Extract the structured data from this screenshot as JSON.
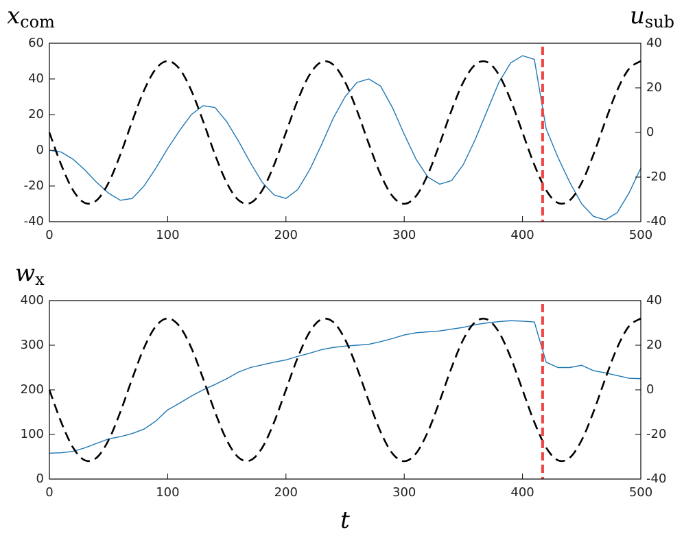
{
  "chart_data": [
    {
      "type": "line",
      "ylabel": {
        "base": "x",
        "sub": "com"
      },
      "y2label": {
        "base": "u",
        "sub": "sub"
      },
      "x": [
        0,
        10,
        20,
        30,
        40,
        50,
        60,
        70,
        80,
        90,
        100,
        110,
        120,
        130,
        140,
        150,
        160,
        170,
        180,
        190,
        200,
        210,
        220,
        230,
        240,
        250,
        260,
        270,
        280,
        290,
        300,
        310,
        320,
        330,
        340,
        350,
        360,
        370,
        380,
        390,
        400,
        410,
        420,
        430,
        440,
        450,
        460,
        470,
        480,
        490,
        500
      ],
      "series": [
        {
          "color": "#1f77b4",
          "values": [
            0,
            -1,
            -5,
            -11,
            -18,
            -24,
            -28,
            -27,
            -20,
            -10,
            1,
            11,
            20,
            25,
            24,
            16,
            5,
            -7,
            -18,
            -25,
            -27,
            -22,
            -11,
            3,
            18,
            30,
            38,
            40,
            36,
            24,
            9,
            -5,
            -15,
            -19,
            -17,
            -8,
            6,
            22,
            38,
            49,
            53,
            51,
            12,
            -4,
            -18,
            -30,
            -37,
            -39,
            -35,
            -24,
            -10
          ]
        },
        {
          "color": "#000000",
          "dashed": true,
          "axis": "y2",
          "values": [
            0,
            -14.5,
            -25.9,
            -31.6,
            -30.4,
            -22.6,
            -9.9,
            5,
            18.8,
            28.5,
            32,
            28.5,
            18.8,
            5,
            -9.9,
            -22.6,
            -30.4,
            -31.6,
            -25.9,
            -14.5,
            0,
            14.5,
            25.9,
            31.6,
            30.4,
            22.6,
            9.9,
            -5,
            -18.8,
            -28.5,
            -32,
            -28.5,
            -18.8,
            -5,
            9.9,
            22.6,
            30.4,
            31.6,
            25.9,
            14.5,
            0,
            -14.5,
            -25.9,
            -31.6,
            -30.4,
            -22.6,
            -9.9,
            5,
            18.8,
            28.5,
            32
          ]
        }
      ],
      "vline": {
        "x": 417,
        "color": "#ee4444"
      },
      "xlim": [
        0,
        500
      ],
      "xticks": [
        0,
        100,
        200,
        300,
        400,
        500
      ],
      "ylim": [
        -40,
        60
      ],
      "yticks": [
        -40,
        -20,
        0,
        20,
        40,
        60
      ],
      "y2lim": [
        -40,
        40
      ],
      "y2ticks": [
        -40,
        -20,
        0,
        20,
        40
      ]
    },
    {
      "type": "line",
      "ylabel": {
        "base": "w",
        "sub": "x"
      },
      "xlabel": "t",
      "x": [
        0,
        10,
        20,
        30,
        40,
        50,
        60,
        70,
        80,
        90,
        100,
        110,
        120,
        130,
        140,
        150,
        160,
        170,
        180,
        190,
        200,
        210,
        220,
        230,
        240,
        250,
        260,
        270,
        280,
        290,
        300,
        310,
        320,
        330,
        340,
        350,
        360,
        370,
        380,
        390,
        400,
        410,
        420,
        430,
        440,
        450,
        460,
        470,
        480,
        490,
        500
      ],
      "series": [
        {
          "color": "#1f77b4",
          "values": [
            58,
            59,
            62,
            70,
            80,
            90,
            95,
            102,
            112,
            130,
            155,
            170,
            186,
            200,
            212,
            225,
            240,
            250,
            256,
            262,
            267,
            275,
            282,
            290,
            295,
            298,
            300,
            302,
            308,
            315,
            323,
            328,
            330,
            332,
            336,
            340,
            346,
            350,
            353,
            355,
            354,
            352,
            262,
            250,
            250,
            255,
            243,
            238,
            232,
            226,
            225
          ]
        },
        {
          "color": "#000000",
          "dashed": true,
          "axis": "y2",
          "values": [
            0,
            -14.5,
            -25.9,
            -31.6,
            -30.4,
            -22.6,
            -9.9,
            5,
            18.8,
            28.5,
            32,
            28.5,
            18.8,
            5,
            -9.9,
            -22.6,
            -30.4,
            -31.6,
            -25.9,
            -14.5,
            0,
            14.5,
            25.9,
            31.6,
            30.4,
            22.6,
            9.9,
            -5,
            -18.8,
            -28.5,
            -32,
            -28.5,
            -18.8,
            -5,
            9.9,
            22.6,
            30.4,
            31.6,
            25.9,
            14.5,
            0,
            -14.5,
            -25.9,
            -31.6,
            -30.4,
            -22.6,
            -9.9,
            5,
            18.8,
            28.5,
            32
          ]
        }
      ],
      "vline": {
        "x": 417,
        "color": "#ee4444"
      },
      "xlim": [
        0,
        500
      ],
      "xticks": [
        0,
        100,
        200,
        300,
        400,
        500
      ],
      "ylim": [
        0,
        400
      ],
      "yticks": [
        0,
        100,
        200,
        300,
        400
      ],
      "y2lim": [
        -40,
        40
      ],
      "y2ticks": [
        -40,
        -20,
        0,
        20,
        40
      ]
    }
  ]
}
